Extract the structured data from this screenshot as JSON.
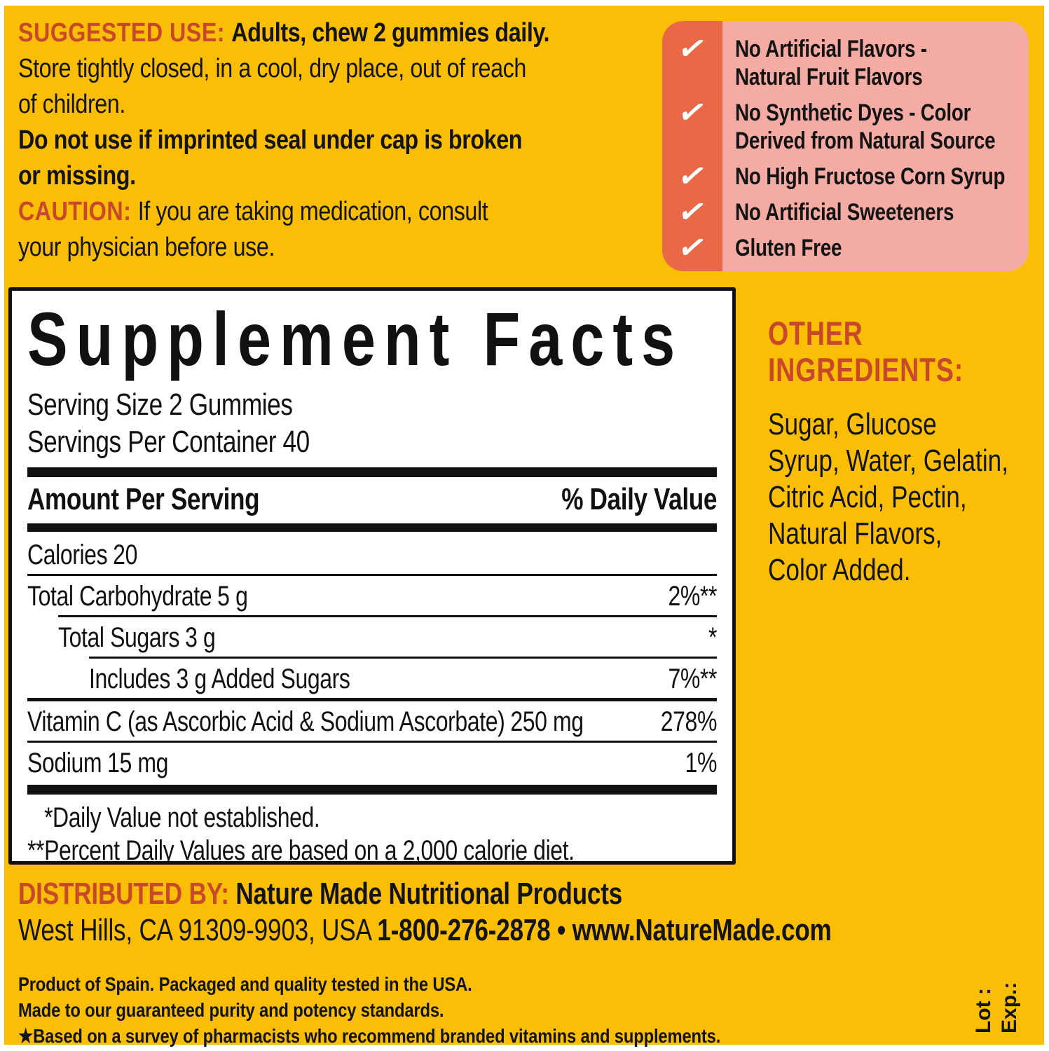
{
  "colors": {
    "background_yellow": "#FBBE06",
    "accent_red": "#C8492A",
    "strip_orange": "#E96845",
    "panel_pink": "#F3ABA4",
    "facts_background": "#FFFFFF",
    "text_black": "#141414"
  },
  "usage": {
    "suggested_heading": "SUGGESTED USE: ",
    "suggested_directions": "Adults, chew 2 gummies daily.",
    "storage_text": "\nStore tightly closed, in a cool, dry place, out of reach\nof children.",
    "seal_warning": "\nDo not use if imprinted seal under cap is broken\nor missing.",
    "caution_heading": "\nCAUTION: ",
    "caution_text": "If you are taking medication, consult\nyour physician before use."
  },
  "quality_checklist": {
    "check_icon": "✓",
    "items": [
      "No Artificial Flavors -\nNatural Fruit Flavors",
      "No Synthetic Dyes - Color\nDerived from Natural Source",
      "No High Fructose Corn Syrup",
      "No Artificial Sweeteners",
      "Gluten Free"
    ]
  },
  "supplement_facts": {
    "title": "Supplement Facts",
    "serving_size": "Serving Size 2 Gummies",
    "servings_per_container": "Servings Per Container 40",
    "col_amount": "Amount Per Serving",
    "col_dv": "% Daily Value",
    "rows": [
      {
        "name": "Calories",
        "amount": "20",
        "dv": ""
      },
      {
        "name": "Total Carbohydrate",
        "amount": "5 g",
        "dv": "2%**"
      },
      {
        "name": "Total Sugars",
        "amount": "3 g",
        "dv": "*"
      },
      {
        "name": "Includes 3 g Added Sugars",
        "amount": "",
        "dv": "7%**"
      },
      {
        "name": "Vitamin C (as Ascorbic Acid & Sodium Ascorbate)",
        "amount": "250 mg",
        "dv": "278%"
      },
      {
        "name": "Sodium",
        "amount": "15 mg",
        "dv": "1%"
      }
    ],
    "footnotes": [
      "*Daily Value not established.",
      "**Percent Daily Values are based on a 2,000 calorie diet."
    ]
  },
  "other_ingredients": {
    "heading": "OTHER\nINGREDIENTS:",
    "text": "Sugar, Glucose\nSyrup, Water, Gelatin,\nCitric Acid, Pectin,\nNatural Flavors,\nColor Added."
  },
  "distributed_by": {
    "heading": "DISTRIBUTED BY: ",
    "company": "Nature Made Nutritional Products",
    "address": "West Hills, CA 91309-9903, USA ",
    "phone": "1-800-276-2878",
    "separator": " • ",
    "website": "www.NatureMade.com"
  },
  "fine_print": [
    "Product of Spain. Packaged and quality tested in the USA.",
    "Made to our guaranteed purity and potency standards.",
    "★Based on a survey of pharmacists who recommend branded vitamins and supplements."
  ],
  "lot_exp": {
    "lot": "Lot :",
    "exp": "Exp.:"
  }
}
